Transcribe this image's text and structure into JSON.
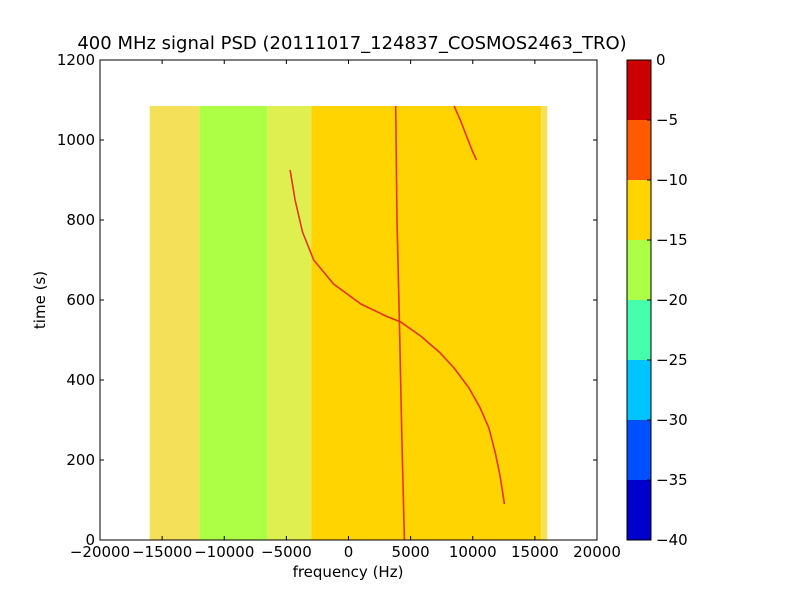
{
  "chart_data": {
    "type": "heatmap",
    "title": "400 MHz signal PSD (20111017_124837_COSMOS2463_TRO)",
    "xlabel": "frequency (Hz)",
    "ylabel": "time (s)",
    "xlim": [
      -20000,
      20000
    ],
    "ylim": [
      0,
      1200
    ],
    "x_ticks": [
      -20000,
      -15000,
      -10000,
      -5000,
      0,
      5000,
      10000,
      15000,
      20000
    ],
    "x_tick_labels": [
      "−20000",
      "−15000",
      "−10000",
      "−5000",
      "0",
      "5000",
      "10000",
      "15000",
      "20000"
    ],
    "y_ticks": [
      0,
      200,
      400,
      600,
      800,
      1000,
      1200
    ],
    "y_tick_labels": [
      "0",
      "200",
      "400",
      "600",
      "800",
      "1000",
      "1200"
    ],
    "data_extent": {
      "x": [
        -16000,
        16000
      ],
      "y": [
        0,
        1085
      ]
    },
    "regions": [
      {
        "x": [
          -16000,
          -12000
        ],
        "level": -15,
        "color": "#f5e05a"
      },
      {
        "x": [
          -12000,
          -6500
        ],
        "level": -17.5,
        "color": "#adff45"
      },
      {
        "x": [
          -6500,
          -3000
        ],
        "level": -15,
        "color": "#dfef4f"
      },
      {
        "x": [
          -3000,
          15500
        ],
        "level": -12.5,
        "color": "#ffd400"
      },
      {
        "x": [
          15500,
          16000
        ],
        "level": -15,
        "color": "#f5e05a"
      }
    ],
    "signal_traces": [
      {
        "name": "",
        "color": "#e8311a",
        "points": [
          [
            -4700,
            925
          ],
          [
            -4300,
            850
          ],
          [
            -3700,
            770
          ],
          [
            -2800,
            700
          ],
          [
            -1200,
            640
          ],
          [
            1000,
            590
          ],
          [
            3000,
            560
          ],
          [
            4200,
            545
          ],
          [
            5800,
            510
          ],
          [
            7300,
            470
          ],
          [
            8500,
            430
          ],
          [
            9700,
            380
          ],
          [
            10600,
            330
          ],
          [
            11300,
            280
          ],
          [
            11800,
            220
          ],
          [
            12200,
            160
          ],
          [
            12550,
            90
          ]
        ]
      },
      {
        "name": "",
        "color": "#e8311a",
        "points": [
          [
            8500,
            1085
          ],
          [
            9000,
            1050
          ],
          [
            9500,
            1010
          ],
          [
            10000,
            970
          ],
          [
            10300,
            950
          ]
        ]
      },
      {
        "name": "",
        "color": "#e8311a",
        "points": [
          [
            3800,
            1085
          ],
          [
            3900,
            800
          ],
          [
            4100,
            545
          ],
          [
            4300,
            250
          ],
          [
            4500,
            0
          ]
        ]
      }
    ],
    "colorbar": {
      "ticks": [
        "0",
        "−5",
        "−10",
        "−15",
        "−20",
        "−25",
        "−30",
        "−35",
        "−40"
      ],
      "bands": [
        {
          "range": [
            -5,
            0
          ],
          "color": "#cc0000"
        },
        {
          "range": [
            -10,
            -5
          ],
          "color": "#ff5a00"
        },
        {
          "range": [
            -15,
            -10
          ],
          "color": "#ffd400"
        },
        {
          "range": [
            -20,
            -15
          ],
          "color": "#adff45"
        },
        {
          "range": [
            -25,
            -20
          ],
          "color": "#45ffad"
        },
        {
          "range": [
            -30,
            -25
          ],
          "color": "#00c4ff"
        },
        {
          "range": [
            -35,
            -30
          ],
          "color": "#0050ff"
        },
        {
          "range": [
            -40,
            -35
          ],
          "color": "#0000cc"
        }
      ]
    },
    "grid": false,
    "legend": "none"
  }
}
